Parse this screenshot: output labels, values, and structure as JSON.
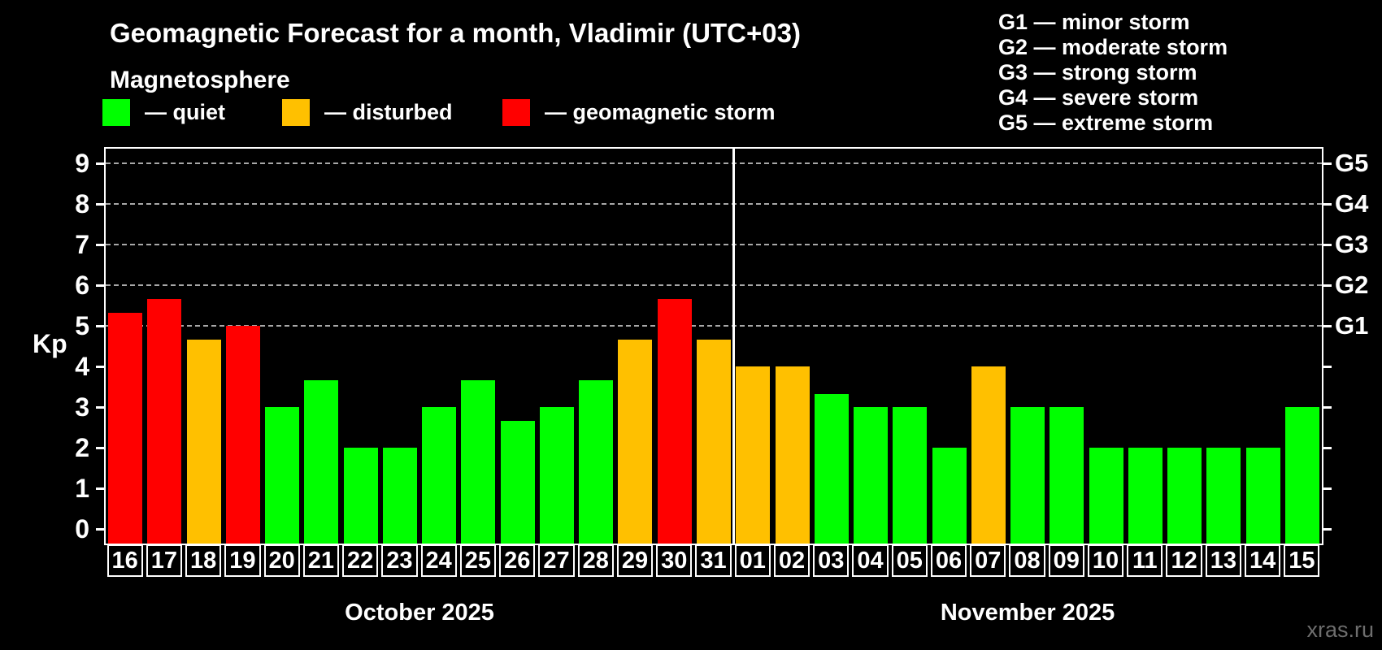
{
  "header": {
    "title": "Geomagnetic Forecast for a month, Vladimir (UTC+03)",
    "subtitle": "Magnetosphere"
  },
  "legend": {
    "items": [
      {
        "id": "quiet",
        "label": "— quiet",
        "color": "#00ff00"
      },
      {
        "id": "disturbed",
        "label": "— disturbed",
        "color": "#ffc000"
      },
      {
        "id": "storm",
        "label": "— geomagnetic storm",
        "color": "#ff0000"
      }
    ]
  },
  "g_legend": {
    "items": [
      "G1 — minor storm",
      "G2 — moderate storm",
      "G3 — strong storm",
      "G4 — severe storm",
      "G5 — extreme storm"
    ]
  },
  "watermark": "xras.ru",
  "chart_data": {
    "type": "bar",
    "title": "Geomagnetic Forecast for a month, Vladimir (UTC+03)",
    "xlabel": "",
    "ylabel": "Kp",
    "ylim": [
      0,
      9
    ],
    "y_ticks": [
      0,
      1,
      2,
      3,
      4,
      5,
      6,
      7,
      8,
      9
    ],
    "gridlines_at": [
      5,
      6,
      7,
      8,
      9
    ],
    "grid": "dashed-horizontal",
    "legend_position": "top",
    "right_axis_labels": [
      {
        "value": 5,
        "label": "G1"
      },
      {
        "value": 6,
        "label": "G2"
      },
      {
        "value": 7,
        "label": "G3"
      },
      {
        "value": 8,
        "label": "G4"
      },
      {
        "value": 9,
        "label": "G5"
      }
    ],
    "status_colors": {
      "quiet": "#00ff00",
      "disturbed": "#ffc000",
      "storm": "#ff0000"
    },
    "categories": [
      "16",
      "17",
      "18",
      "19",
      "20",
      "21",
      "22",
      "23",
      "24",
      "25",
      "26",
      "27",
      "28",
      "29",
      "30",
      "31",
      "01",
      "02",
      "03",
      "04",
      "05",
      "06",
      "07",
      "08",
      "09",
      "10",
      "11",
      "12",
      "13",
      "14",
      "15"
    ],
    "values": [
      5.33,
      5.67,
      4.67,
      5.0,
      3.0,
      3.67,
      2.0,
      2.0,
      3.0,
      3.67,
      2.67,
      3.0,
      3.67,
      4.67,
      5.67,
      4.67,
      4.0,
      4.0,
      3.33,
      3.0,
      3.0,
      2.0,
      4.0,
      3.0,
      3.0,
      2.0,
      2.0,
      2.0,
      2.0,
      2.0,
      3.0
    ],
    "statuses": [
      "storm",
      "storm",
      "disturbed",
      "storm",
      "quiet",
      "quiet",
      "quiet",
      "quiet",
      "quiet",
      "quiet",
      "quiet",
      "quiet",
      "quiet",
      "disturbed",
      "storm",
      "disturbed",
      "disturbed",
      "disturbed",
      "quiet",
      "quiet",
      "quiet",
      "quiet",
      "disturbed",
      "quiet",
      "quiet",
      "quiet",
      "quiet",
      "quiet",
      "quiet",
      "quiet",
      "quiet"
    ],
    "months": [
      {
        "label": "October 2025",
        "count": 16
      },
      {
        "label": "November 2025",
        "count": 15
      }
    ]
  }
}
